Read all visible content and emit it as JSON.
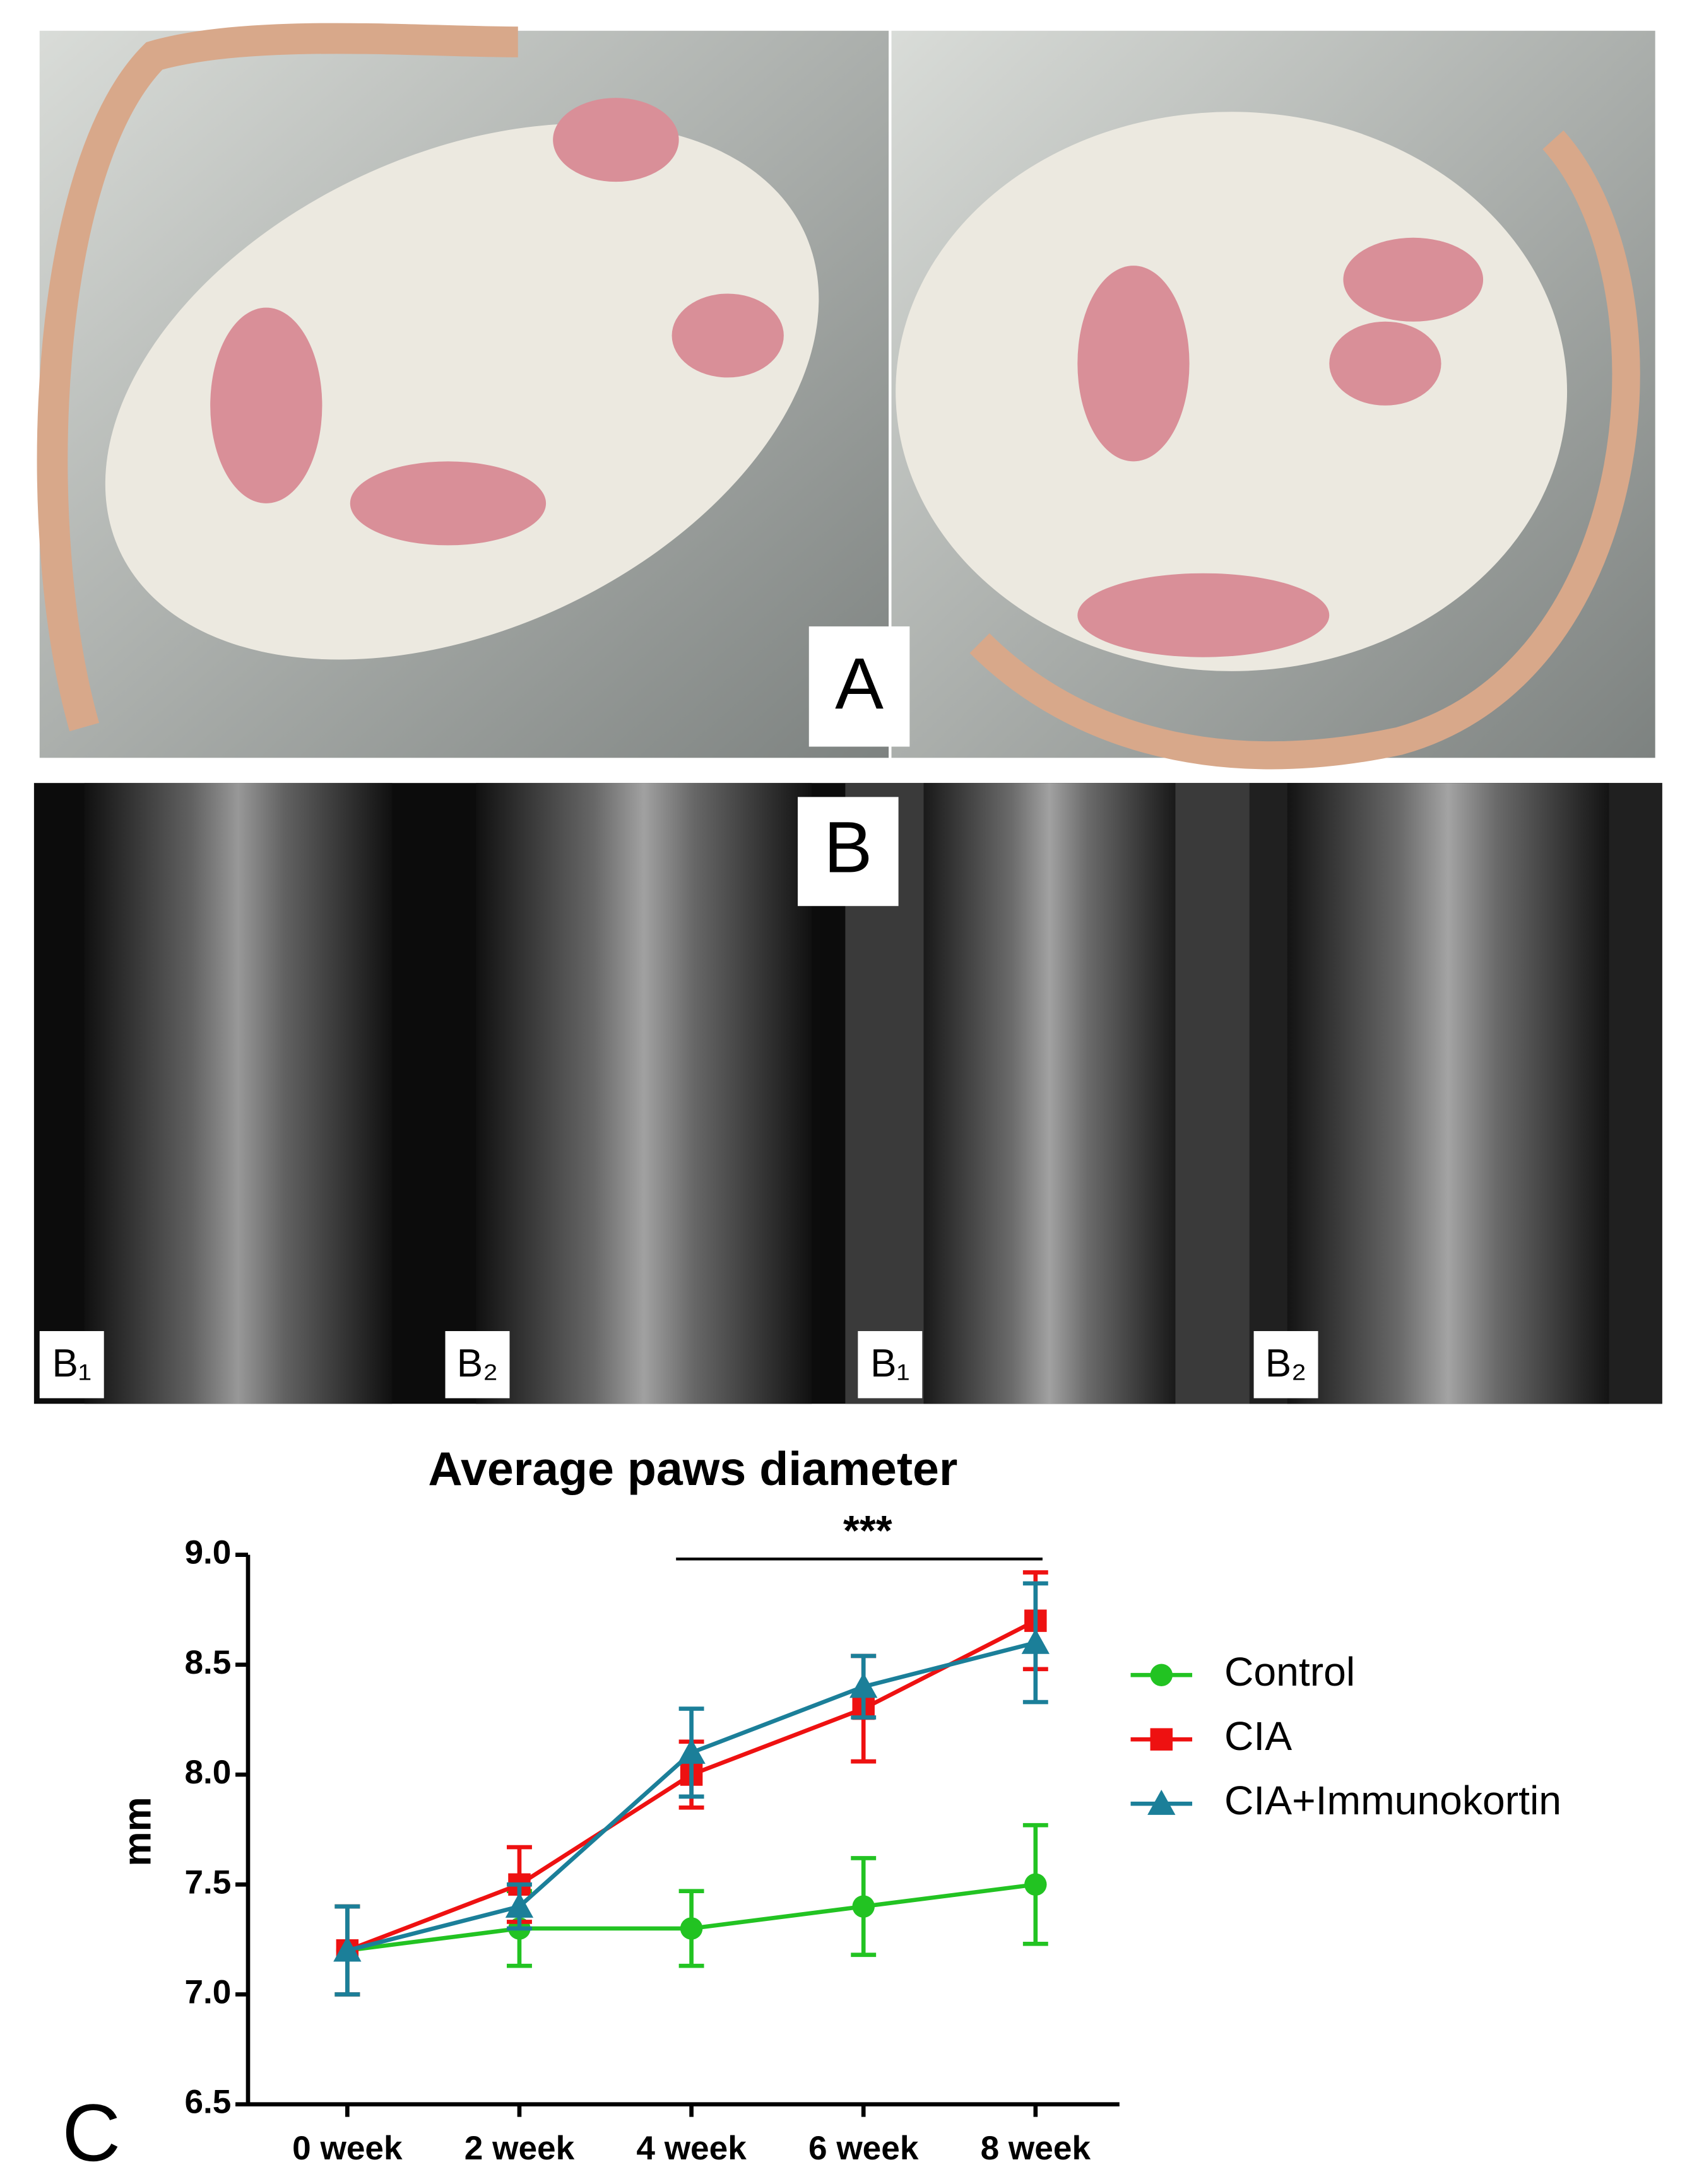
{
  "panels": {
    "a_label": "A",
    "b_label": "B",
    "b_sub_labels": [
      "B₁",
      "B₂",
      "B₁",
      "B₂"
    ],
    "c_label": "C"
  },
  "chart_data": {
    "type": "line",
    "title": "Average paws diameter",
    "y_label": "mm",
    "annotation": "***",
    "categories": [
      "0 week",
      "2 week",
      "4 week",
      "6 week",
      "8 week"
    ],
    "series": [
      {
        "name": "Control",
        "color": "#22c322",
        "marker": "circle",
        "values": [
          7.2,
          7.3,
          7.3,
          7.4,
          7.5
        ],
        "errors": [
          0.2,
          0.17,
          0.17,
          0.22,
          0.27
        ]
      },
      {
        "name": "CIA",
        "color": "#ee1111",
        "marker": "square",
        "values": [
          7.2,
          7.5,
          8.0,
          8.3,
          8.7
        ],
        "errors": [
          0.2,
          0.17,
          0.15,
          0.24,
          0.22
        ]
      },
      {
        "name": "CIA+Immunokortin",
        "color": "#1b7f99",
        "marker": "triangle",
        "values": [
          7.2,
          7.4,
          8.1,
          8.4,
          8.6
        ],
        "errors": [
          0.2,
          0.1,
          0.2,
          0.14,
          0.27
        ]
      }
    ],
    "ylim": [
      6.5,
      9.0
    ],
    "yticks": [
      6.5,
      {
        "value": 7,
        "label": "7.0"
      },
      7.5,
      {
        "value": 8,
        "label": "8.0"
      },
      8.5,
      {
        "value": 9,
        "label": "9.0"
      }
    ],
    "legend": "right"
  }
}
